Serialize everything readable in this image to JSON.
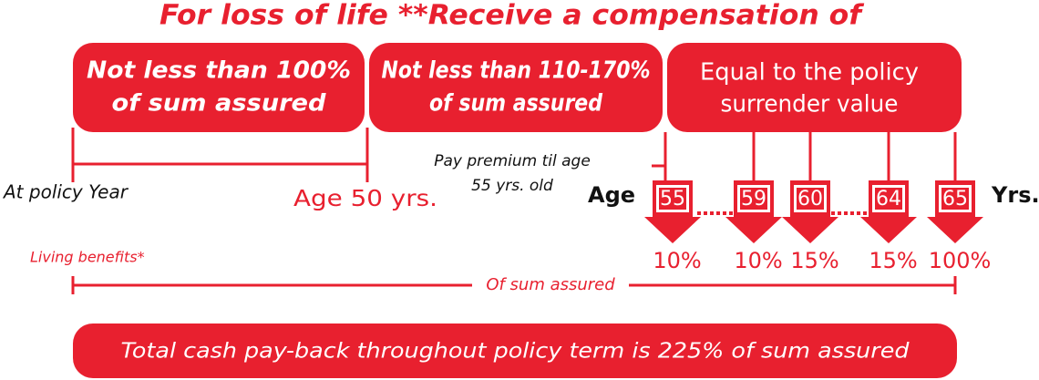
{
  "title": "For loss of life **Receive a compensation of",
  "boxes": [
    {
      "lines": [
        "Not less than 100%",
        "of sum assured"
      ]
    },
    {
      "lines": [
        "Not less than 110-170%",
        "of sum assured"
      ]
    },
    {
      "lines": [
        "Equal to the policy",
        "surrender value"
      ]
    }
  ],
  "timeline": {
    "start_label": "At policy Year",
    "age_50": "Age 50 yrs.",
    "premium_note": [
      "Pay premium til age",
      "55 yrs. old"
    ],
    "age_label": "Age",
    "ages": [
      "55",
      "59",
      "60",
      "64",
      "65"
    ],
    "unit": "Yrs.",
    "payouts": [
      "10%",
      "10%",
      "15%",
      "15%",
      "100%"
    ]
  },
  "living_benefits": "Living benefits*",
  "of_sum_assured": "Of sum assured",
  "total": "Total cash pay-back throughout policy term is 225% of sum assured"
}
